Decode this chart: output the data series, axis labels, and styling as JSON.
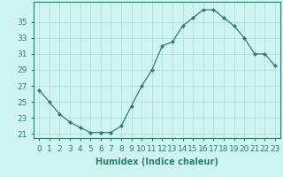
{
  "x": [
    0,
    1,
    2,
    3,
    4,
    5,
    6,
    7,
    8,
    9,
    10,
    11,
    12,
    13,
    14,
    15,
    16,
    17,
    18,
    19,
    20,
    21,
    22,
    23
  ],
  "y": [
    26.5,
    25.0,
    23.5,
    22.5,
    21.8,
    21.2,
    21.2,
    21.2,
    22.0,
    24.5,
    27.0,
    29.0,
    32.0,
    32.5,
    34.5,
    35.5,
    36.5,
    36.5,
    35.5,
    34.5,
    33.0,
    31.0,
    31.0,
    29.5
  ],
  "line_color": "#2e7d72",
  "marker": "D",
  "marker_size": 2,
  "bg_color": "#cff5f0",
  "grid_color": "#b8d8d4",
  "xlabel": "Humidex (Indice chaleur)",
  "xlim": [
    -0.5,
    23.5
  ],
  "ylim": [
    20.5,
    37.5
  ],
  "yticks": [
    21,
    23,
    25,
    27,
    29,
    31,
    33,
    35
  ],
  "xtick_labels": [
    "0",
    "1",
    "2",
    "3",
    "4",
    "5",
    "6",
    "7",
    "8",
    "9",
    "10",
    "11",
    "12",
    "13",
    "14",
    "15",
    "16",
    "17",
    "18",
    "19",
    "20",
    "21",
    "22",
    "23"
  ],
  "xlabel_fontsize": 7,
  "tick_fontsize": 6.5
}
